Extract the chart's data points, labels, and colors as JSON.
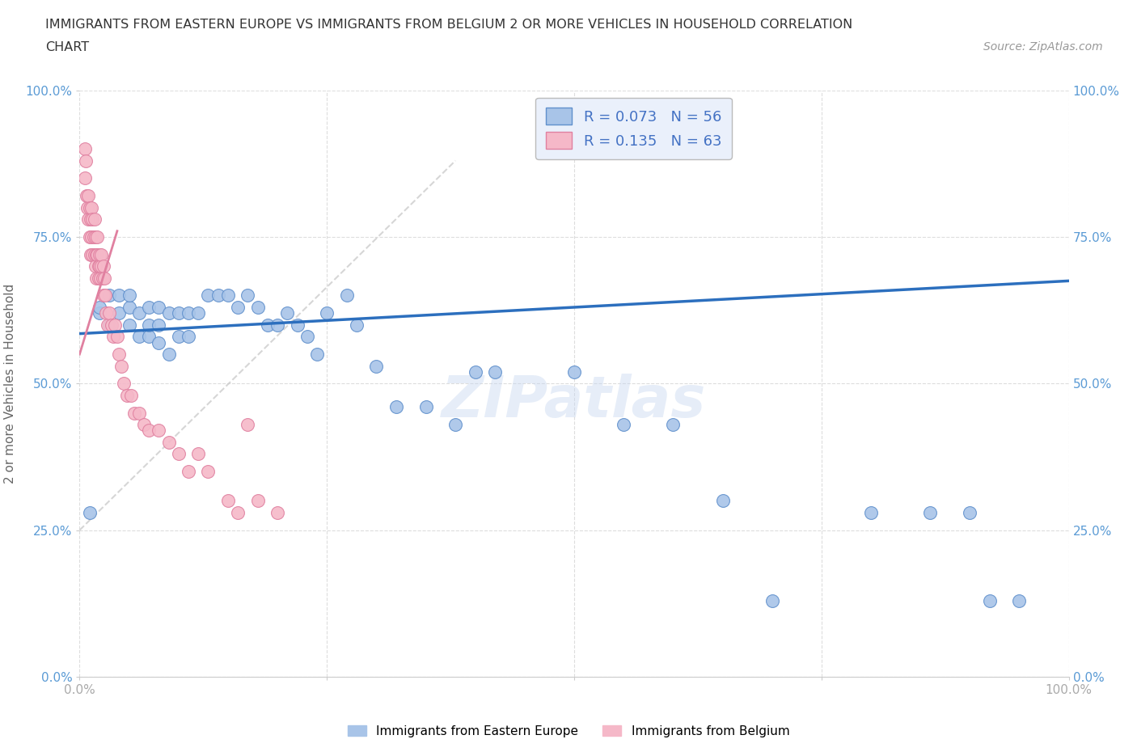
{
  "title_line1": "IMMIGRANTS FROM EASTERN EUROPE VS IMMIGRANTS FROM BELGIUM 2 OR MORE VEHICLES IN HOUSEHOLD CORRELATION",
  "title_line2": "CHART",
  "source": "Source: ZipAtlas.com",
  "ylabel": "2 or more Vehicles in Household",
  "xlim": [
    0.0,
    1.0
  ],
  "ylim": [
    0.0,
    1.0
  ],
  "ytick_labels": [
    "0.0%",
    "25.0%",
    "50.0%",
    "75.0%",
    "100.0%"
  ],
  "ytick_positions": [
    0.0,
    0.25,
    0.5,
    0.75,
    1.0
  ],
  "blue_R": 0.073,
  "blue_N": 56,
  "pink_R": 0.135,
  "pink_N": 63,
  "blue_color": "#a8c4e8",
  "pink_color": "#f5b8c8",
  "blue_edge_color": "#6090cc",
  "pink_edge_color": "#e080a0",
  "blue_line_color": "#2c6fbe",
  "pink_line_color": "#cccccc",
  "legend_box_color": "#eaf0fb",
  "watermark": "ZIPatlas",
  "background_color": "#ffffff",
  "blue_scatter_x": [
    0.01,
    0.02,
    0.02,
    0.03,
    0.03,
    0.04,
    0.04,
    0.05,
    0.05,
    0.05,
    0.06,
    0.06,
    0.07,
    0.07,
    0.07,
    0.08,
    0.08,
    0.08,
    0.09,
    0.09,
    0.1,
    0.1,
    0.11,
    0.11,
    0.12,
    0.13,
    0.14,
    0.15,
    0.16,
    0.17,
    0.18,
    0.19,
    0.2,
    0.21,
    0.22,
    0.23,
    0.24,
    0.25,
    0.27,
    0.28,
    0.3,
    0.32,
    0.35,
    0.38,
    0.4,
    0.42,
    0.5,
    0.55,
    0.6,
    0.65,
    0.7,
    0.8,
    0.86,
    0.9,
    0.92,
    0.95
  ],
  "blue_scatter_y": [
    0.28,
    0.62,
    0.63,
    0.6,
    0.65,
    0.62,
    0.65,
    0.6,
    0.63,
    0.65,
    0.58,
    0.62,
    0.58,
    0.6,
    0.63,
    0.57,
    0.6,
    0.63,
    0.55,
    0.62,
    0.58,
    0.62,
    0.58,
    0.62,
    0.62,
    0.65,
    0.65,
    0.65,
    0.63,
    0.65,
    0.63,
    0.6,
    0.6,
    0.62,
    0.6,
    0.58,
    0.55,
    0.62,
    0.65,
    0.6,
    0.53,
    0.46,
    0.46,
    0.43,
    0.52,
    0.52,
    0.52,
    0.43,
    0.43,
    0.3,
    0.13,
    0.28,
    0.28,
    0.28,
    0.13,
    0.13
  ],
  "pink_scatter_x": [
    0.005,
    0.005,
    0.006,
    0.007,
    0.008,
    0.009,
    0.009,
    0.01,
    0.01,
    0.011,
    0.011,
    0.012,
    0.012,
    0.013,
    0.013,
    0.014,
    0.015,
    0.015,
    0.016,
    0.016,
    0.017,
    0.017,
    0.018,
    0.018,
    0.019,
    0.019,
    0.02,
    0.02,
    0.021,
    0.022,
    0.022,
    0.023,
    0.024,
    0.024,
    0.025,
    0.026,
    0.027,
    0.028,
    0.03,
    0.032,
    0.034,
    0.036,
    0.038,
    0.04,
    0.042,
    0.045,
    0.048,
    0.052,
    0.055,
    0.06,
    0.065,
    0.07,
    0.08,
    0.09,
    0.1,
    0.11,
    0.12,
    0.13,
    0.15,
    0.16,
    0.17,
    0.18,
    0.2
  ],
  "pink_scatter_y": [
    0.9,
    0.85,
    0.88,
    0.82,
    0.8,
    0.78,
    0.82,
    0.75,
    0.8,
    0.72,
    0.78,
    0.75,
    0.8,
    0.72,
    0.78,
    0.75,
    0.72,
    0.78,
    0.7,
    0.75,
    0.72,
    0.68,
    0.72,
    0.75,
    0.7,
    0.68,
    0.7,
    0.72,
    0.68,
    0.7,
    0.72,
    0.68,
    0.65,
    0.7,
    0.68,
    0.65,
    0.62,
    0.6,
    0.62,
    0.6,
    0.58,
    0.6,
    0.58,
    0.55,
    0.53,
    0.5,
    0.48,
    0.48,
    0.45,
    0.45,
    0.43,
    0.42,
    0.42,
    0.4,
    0.38,
    0.35,
    0.38,
    0.35,
    0.3,
    0.28,
    0.43,
    0.3,
    0.28
  ],
  "blue_line_x0": 0.0,
  "blue_line_x1": 1.0,
  "blue_line_y0": 0.585,
  "blue_line_y1": 0.675,
  "pink_line_x0": 0.0,
  "pink_line_x1": 0.38,
  "pink_line_y0": 0.25,
  "pink_line_y1": 0.88
}
